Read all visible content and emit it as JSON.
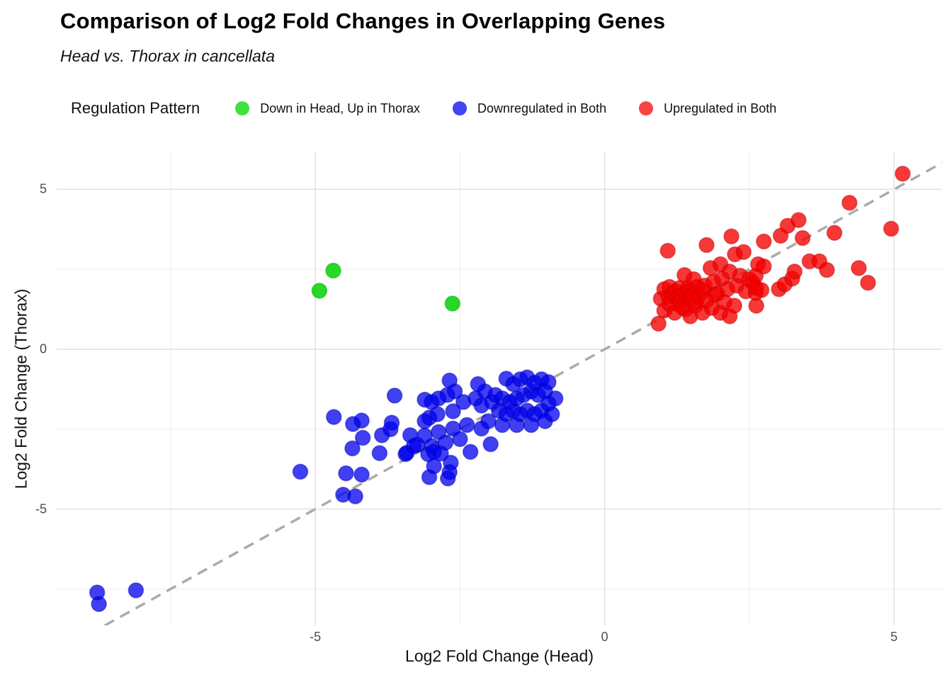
{
  "title": "Comparison of Log2 Fold Changes in Overlapping Genes",
  "subtitle": "Head vs. Thorax in cancellata",
  "legend": {
    "title": "Regulation Pattern",
    "position": "top"
  },
  "colors": {
    "green_fill": "#00d400",
    "green_stroke": "#00a000",
    "blue_fill": "#0000ee",
    "blue_stroke": "#0000b4",
    "red_fill": "#f50000",
    "red_stroke": "#c40000",
    "legend_green": "#3fe23f",
    "legend_blue": "#4444f2",
    "legend_red": "#f94444",
    "gridline_major": "#e3e3e3",
    "gridline_minor": "#efefef",
    "reference_line": "#ababab",
    "tick_label": "#4d4d4d"
  },
  "chart_data": {
    "type": "scatter",
    "title": "Comparison of Log2 Fold Changes in Overlapping Genes",
    "subtitle": "Head vs. Thorax in cancellata",
    "xlabel": "Log2 Fold Change (Head)",
    "ylabel": "Log2 Fold Change (Thorax)",
    "xlim": [
      -9.47,
      5.83
    ],
    "ylim": [
      -8.64,
      6.16
    ],
    "x_ticks": [
      {
        "value": -5,
        "label": "-5"
      },
      {
        "value": 0,
        "label": "0"
      },
      {
        "value": 5,
        "label": "5"
      }
    ],
    "y_ticks": [
      {
        "value": -5,
        "label": "-5"
      },
      {
        "value": 0,
        "label": "0"
      },
      {
        "value": 5,
        "label": "5"
      }
    ],
    "grid_major": [
      -5,
      0,
      5
    ],
    "grid_minor": [
      -7.5,
      -2.5,
      2.5
    ],
    "grid": true,
    "legend_position": "top",
    "reference_line": {
      "type": "identity",
      "slope": 1,
      "intercept": 0,
      "style": "dashed"
    },
    "point_radius_px": 10.5,
    "series": [
      {
        "name": "Down in Head, Up in Thorax",
        "color_key": "green",
        "opacity": 0.85,
        "points": [
          [
            -4.93,
            1.83
          ],
          [
            -4.69,
            2.46
          ],
          [
            -2.63,
            1.43
          ]
        ]
      },
      {
        "name": "Downregulated in Both",
        "color_key": "blue",
        "opacity": 0.75,
        "points": [
          [
            -8.77,
            -7.61
          ],
          [
            -8.74,
            -7.97
          ],
          [
            -8.1,
            -7.54
          ],
          [
            -5.26,
            -3.83
          ],
          [
            -4.68,
            -2.12
          ],
          [
            -4.52,
            -4.55
          ],
          [
            -4.47,
            -3.88
          ],
          [
            -4.36,
            -3.1
          ],
          [
            -4.35,
            -2.34
          ],
          [
            -4.31,
            -4.6
          ],
          [
            -4.2,
            -2.23
          ],
          [
            -4.2,
            -3.92
          ],
          [
            -4.18,
            -2.77
          ],
          [
            -3.89,
            -3.25
          ],
          [
            -3.85,
            -2.69
          ],
          [
            -3.7,
            -2.5
          ],
          [
            -3.68,
            -2.3
          ],
          [
            -3.63,
            -1.45
          ],
          [
            -3.44,
            -3.28
          ],
          [
            -3.42,
            -3.24
          ],
          [
            -3.36,
            -2.69
          ],
          [
            -3.3,
            -3.03
          ],
          [
            -3.24,
            -2.99
          ],
          [
            -3.11,
            -1.58
          ],
          [
            -3.11,
            -2.25
          ],
          [
            -3.11,
            -2.7
          ],
          [
            -3.05,
            -3.28
          ],
          [
            -3.03,
            -2.14
          ],
          [
            -3.03,
            -4.0
          ],
          [
            -2.99,
            -1.65
          ],
          [
            -2.99,
            -3.03
          ],
          [
            -2.95,
            -3.21
          ],
          [
            -2.95,
            -3.66
          ],
          [
            -2.89,
            -2.03
          ],
          [
            -2.87,
            -1.54
          ],
          [
            -2.87,
            -2.59
          ],
          [
            -2.83,
            -3.26
          ],
          [
            -2.75,
            -2.92
          ],
          [
            -2.72,
            -1.43
          ],
          [
            -2.71,
            -4.04
          ],
          [
            -2.68,
            -0.98
          ],
          [
            -2.68,
            -3.84
          ],
          [
            -2.66,
            -3.55
          ],
          [
            -2.62,
            -1.94
          ],
          [
            -2.62,
            -2.48
          ],
          [
            -2.59,
            -1.32
          ],
          [
            -2.5,
            -2.81
          ],
          [
            -2.44,
            -1.65
          ],
          [
            -2.38,
            -2.37
          ],
          [
            -2.32,
            -3.21
          ],
          [
            -2.23,
            -1.54
          ],
          [
            -2.19,
            -1.09
          ],
          [
            -2.13,
            -1.76
          ],
          [
            -2.13,
            -2.48
          ],
          [
            -2.07,
            -1.32
          ],
          [
            -2.01,
            -2.25
          ],
          [
            -1.97,
            -2.97
          ],
          [
            -1.95,
            -1.65
          ],
          [
            -1.89,
            -1.43
          ],
          [
            -1.83,
            -1.92
          ],
          [
            -1.77,
            -1.54
          ],
          [
            -1.77,
            -2.37
          ],
          [
            -1.7,
            -0.92
          ],
          [
            -1.7,
            -2.03
          ],
          [
            -1.64,
            -1.65
          ],
          [
            -1.58,
            -1.09
          ],
          [
            -1.58,
            -1.92
          ],
          [
            -1.52,
            -1.54
          ],
          [
            -1.52,
            -2.37
          ],
          [
            -1.46,
            -0.94
          ],
          [
            -1.46,
            -2.03
          ],
          [
            -1.4,
            -1.43
          ],
          [
            -1.34,
            -0.88
          ],
          [
            -1.34,
            -1.92
          ],
          [
            -1.27,
            -1.32
          ],
          [
            -1.27,
            -2.37
          ],
          [
            -1.21,
            -1.05
          ],
          [
            -1.21,
            -2.03
          ],
          [
            -1.15,
            -1.43
          ],
          [
            -1.09,
            -0.94
          ],
          [
            -1.09,
            -1.92
          ],
          [
            -1.03,
            -1.32
          ],
          [
            -1.03,
            -2.25
          ],
          [
            -0.97,
            -1.03
          ],
          [
            -0.97,
            -1.7
          ],
          [
            -0.91,
            -2.03
          ],
          [
            -0.85,
            -1.54
          ]
        ]
      },
      {
        "name": "Upregulated in Both",
        "color_key": "red",
        "opacity": 0.78,
        "points": [
          [
            0.93,
            0.8
          ],
          [
            0.97,
            1.58
          ],
          [
            1.03,
            1.21
          ],
          [
            1.03,
            1.88
          ],
          [
            1.09,
            3.08
          ],
          [
            1.1,
            1.65
          ],
          [
            1.12,
            1.41
          ],
          [
            1.12,
            1.95
          ],
          [
            1.18,
            1.74
          ],
          [
            1.21,
            1.14
          ],
          [
            1.22,
            1.82
          ],
          [
            1.25,
            1.6
          ],
          [
            1.28,
            1.4
          ],
          [
            1.3,
            1.52
          ],
          [
            1.3,
            1.92
          ],
          [
            1.33,
            1.68
          ],
          [
            1.35,
            1.3
          ],
          [
            1.38,
            2.32
          ],
          [
            1.4,
            1.25
          ],
          [
            1.4,
            1.78
          ],
          [
            1.44,
            1.92
          ],
          [
            1.46,
            1.81
          ],
          [
            1.48,
            1.03
          ],
          [
            1.5,
            1.55
          ],
          [
            1.52,
            1.7
          ],
          [
            1.54,
            2.19
          ],
          [
            1.57,
            1.36
          ],
          [
            1.58,
            1.48
          ],
          [
            1.6,
            1.95
          ],
          [
            1.63,
            1.65
          ],
          [
            1.69,
            1.14
          ],
          [
            1.7,
            1.85
          ],
          [
            1.73,
            1.99
          ],
          [
            1.76,
            1.52
          ],
          [
            1.76,
            3.26
          ],
          [
            1.83,
            2.54
          ],
          [
            1.85,
            1.29
          ],
          [
            1.88,
            2.1
          ],
          [
            1.9,
            1.7
          ],
          [
            1.95,
            1.74
          ],
          [
            2.0,
            1.14
          ],
          [
            2.0,
            2.66
          ],
          [
            2.03,
            2.21
          ],
          [
            2.07,
            1.47
          ],
          [
            2.12,
            1.88
          ],
          [
            2.16,
            1.03
          ],
          [
            2.16,
            2.43
          ],
          [
            2.19,
            3.53
          ],
          [
            2.24,
            1.36
          ],
          [
            2.25,
            2.97
          ],
          [
            2.28,
            1.99
          ],
          [
            2.34,
            2.3
          ],
          [
            2.4,
            3.04
          ],
          [
            2.44,
            1.81
          ],
          [
            2.5,
            2.19
          ],
          [
            2.56,
            2.08
          ],
          [
            2.61,
            1.76
          ],
          [
            2.61,
            2.3
          ],
          [
            2.62,
            1.36
          ],
          [
            2.62,
            1.92
          ],
          [
            2.65,
            2.66
          ],
          [
            2.71,
            1.85
          ],
          [
            2.75,
            2.59
          ],
          [
            2.75,
            3.37
          ],
          [
            3.01,
            1.88
          ],
          [
            3.04,
            3.55
          ],
          [
            3.11,
            2.03
          ],
          [
            3.16,
            3.86
          ],
          [
            3.24,
            2.21
          ],
          [
            3.28,
            2.43
          ],
          [
            3.35,
            4.04
          ],
          [
            3.42,
            3.48
          ],
          [
            3.54,
            2.75
          ],
          [
            3.71,
            2.75
          ],
          [
            3.84,
            2.48
          ],
          [
            3.97,
            3.64
          ],
          [
            4.23,
            4.58
          ],
          [
            4.39,
            2.54
          ],
          [
            4.55,
            2.08
          ],
          [
            4.95,
            3.77
          ],
          [
            5.15,
            5.49
          ]
        ]
      }
    ]
  }
}
